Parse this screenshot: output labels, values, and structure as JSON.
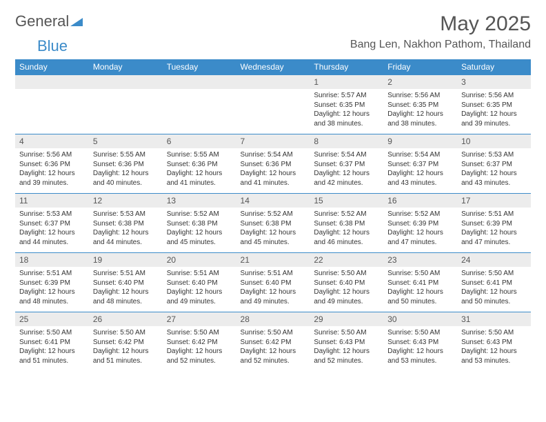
{
  "logo": {
    "word1": "General",
    "word2": "Blue"
  },
  "colors": {
    "header_bg": "#3b8bc9",
    "daynum_bg": "#ececec",
    "text_gray": "#555555",
    "rule": "#3b8bc9"
  },
  "title": "May 2025",
  "location": "Bang Len, Nakhon Pathom, Thailand",
  "weekdays": [
    "Sunday",
    "Monday",
    "Tuesday",
    "Wednesday",
    "Thursday",
    "Friday",
    "Saturday"
  ],
  "cell_fontsize_pt": 10,
  "header_fontsize_pt": 12,
  "title_fontsize_pt": 30,
  "weeks": [
    [
      {
        "blank": true
      },
      {
        "blank": true
      },
      {
        "blank": true
      },
      {
        "blank": true
      },
      {
        "n": "1",
        "sr": "Sunrise: 5:57 AM",
        "ss": "Sunset: 6:35 PM",
        "d1": "Daylight: 12 hours",
        "d2": "and 38 minutes."
      },
      {
        "n": "2",
        "sr": "Sunrise: 5:56 AM",
        "ss": "Sunset: 6:35 PM",
        "d1": "Daylight: 12 hours",
        "d2": "and 38 minutes."
      },
      {
        "n": "3",
        "sr": "Sunrise: 5:56 AM",
        "ss": "Sunset: 6:35 PM",
        "d1": "Daylight: 12 hours",
        "d2": "and 39 minutes."
      }
    ],
    [
      {
        "n": "4",
        "sr": "Sunrise: 5:56 AM",
        "ss": "Sunset: 6:36 PM",
        "d1": "Daylight: 12 hours",
        "d2": "and 39 minutes."
      },
      {
        "n": "5",
        "sr": "Sunrise: 5:55 AM",
        "ss": "Sunset: 6:36 PM",
        "d1": "Daylight: 12 hours",
        "d2": "and 40 minutes."
      },
      {
        "n": "6",
        "sr": "Sunrise: 5:55 AM",
        "ss": "Sunset: 6:36 PM",
        "d1": "Daylight: 12 hours",
        "d2": "and 41 minutes."
      },
      {
        "n": "7",
        "sr": "Sunrise: 5:54 AM",
        "ss": "Sunset: 6:36 PM",
        "d1": "Daylight: 12 hours",
        "d2": "and 41 minutes."
      },
      {
        "n": "8",
        "sr": "Sunrise: 5:54 AM",
        "ss": "Sunset: 6:37 PM",
        "d1": "Daylight: 12 hours",
        "d2": "and 42 minutes."
      },
      {
        "n": "9",
        "sr": "Sunrise: 5:54 AM",
        "ss": "Sunset: 6:37 PM",
        "d1": "Daylight: 12 hours",
        "d2": "and 43 minutes."
      },
      {
        "n": "10",
        "sr": "Sunrise: 5:53 AM",
        "ss": "Sunset: 6:37 PM",
        "d1": "Daylight: 12 hours",
        "d2": "and 43 minutes."
      }
    ],
    [
      {
        "n": "11",
        "sr": "Sunrise: 5:53 AM",
        "ss": "Sunset: 6:37 PM",
        "d1": "Daylight: 12 hours",
        "d2": "and 44 minutes."
      },
      {
        "n": "12",
        "sr": "Sunrise: 5:53 AM",
        "ss": "Sunset: 6:38 PM",
        "d1": "Daylight: 12 hours",
        "d2": "and 44 minutes."
      },
      {
        "n": "13",
        "sr": "Sunrise: 5:52 AM",
        "ss": "Sunset: 6:38 PM",
        "d1": "Daylight: 12 hours",
        "d2": "and 45 minutes."
      },
      {
        "n": "14",
        "sr": "Sunrise: 5:52 AM",
        "ss": "Sunset: 6:38 PM",
        "d1": "Daylight: 12 hours",
        "d2": "and 45 minutes."
      },
      {
        "n": "15",
        "sr": "Sunrise: 5:52 AM",
        "ss": "Sunset: 6:38 PM",
        "d1": "Daylight: 12 hours",
        "d2": "and 46 minutes."
      },
      {
        "n": "16",
        "sr": "Sunrise: 5:52 AM",
        "ss": "Sunset: 6:39 PM",
        "d1": "Daylight: 12 hours",
        "d2": "and 47 minutes."
      },
      {
        "n": "17",
        "sr": "Sunrise: 5:51 AM",
        "ss": "Sunset: 6:39 PM",
        "d1": "Daylight: 12 hours",
        "d2": "and 47 minutes."
      }
    ],
    [
      {
        "n": "18",
        "sr": "Sunrise: 5:51 AM",
        "ss": "Sunset: 6:39 PM",
        "d1": "Daylight: 12 hours",
        "d2": "and 48 minutes."
      },
      {
        "n": "19",
        "sr": "Sunrise: 5:51 AM",
        "ss": "Sunset: 6:40 PM",
        "d1": "Daylight: 12 hours",
        "d2": "and 48 minutes."
      },
      {
        "n": "20",
        "sr": "Sunrise: 5:51 AM",
        "ss": "Sunset: 6:40 PM",
        "d1": "Daylight: 12 hours",
        "d2": "and 49 minutes."
      },
      {
        "n": "21",
        "sr": "Sunrise: 5:51 AM",
        "ss": "Sunset: 6:40 PM",
        "d1": "Daylight: 12 hours",
        "d2": "and 49 minutes."
      },
      {
        "n": "22",
        "sr": "Sunrise: 5:50 AM",
        "ss": "Sunset: 6:40 PM",
        "d1": "Daylight: 12 hours",
        "d2": "and 49 minutes."
      },
      {
        "n": "23",
        "sr": "Sunrise: 5:50 AM",
        "ss": "Sunset: 6:41 PM",
        "d1": "Daylight: 12 hours",
        "d2": "and 50 minutes."
      },
      {
        "n": "24",
        "sr": "Sunrise: 5:50 AM",
        "ss": "Sunset: 6:41 PM",
        "d1": "Daylight: 12 hours",
        "d2": "and 50 minutes."
      }
    ],
    [
      {
        "n": "25",
        "sr": "Sunrise: 5:50 AM",
        "ss": "Sunset: 6:41 PM",
        "d1": "Daylight: 12 hours",
        "d2": "and 51 minutes."
      },
      {
        "n": "26",
        "sr": "Sunrise: 5:50 AM",
        "ss": "Sunset: 6:42 PM",
        "d1": "Daylight: 12 hours",
        "d2": "and 51 minutes."
      },
      {
        "n": "27",
        "sr": "Sunrise: 5:50 AM",
        "ss": "Sunset: 6:42 PM",
        "d1": "Daylight: 12 hours",
        "d2": "and 52 minutes."
      },
      {
        "n": "28",
        "sr": "Sunrise: 5:50 AM",
        "ss": "Sunset: 6:42 PM",
        "d1": "Daylight: 12 hours",
        "d2": "and 52 minutes."
      },
      {
        "n": "29",
        "sr": "Sunrise: 5:50 AM",
        "ss": "Sunset: 6:43 PM",
        "d1": "Daylight: 12 hours",
        "d2": "and 52 minutes."
      },
      {
        "n": "30",
        "sr": "Sunrise: 5:50 AM",
        "ss": "Sunset: 6:43 PM",
        "d1": "Daylight: 12 hours",
        "d2": "and 53 minutes."
      },
      {
        "n": "31",
        "sr": "Sunrise: 5:50 AM",
        "ss": "Sunset: 6:43 PM",
        "d1": "Daylight: 12 hours",
        "d2": "and 53 minutes."
      }
    ]
  ]
}
